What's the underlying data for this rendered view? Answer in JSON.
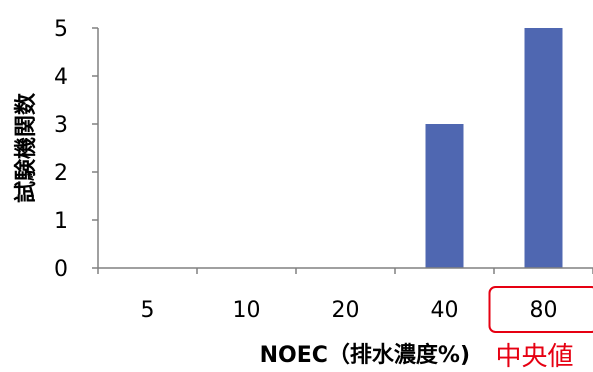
{
  "chart_data": {
    "type": "bar",
    "categories": [
      "5",
      "10",
      "20",
      "40",
      "80"
    ],
    "values": [
      0,
      0,
      0,
      3,
      5
    ],
    "xlabel": "NOEC（排水濃度%)",
    "ylabel": "試験機関数",
    "ylim": [
      0,
      5
    ],
    "yticks": [
      "0",
      "1",
      "2",
      "3",
      "4",
      "5"
    ],
    "grid": false,
    "bar_color": "#4f67b1",
    "highlight": {
      "category": "80",
      "label": "中央値",
      "color": "#e60012"
    }
  }
}
